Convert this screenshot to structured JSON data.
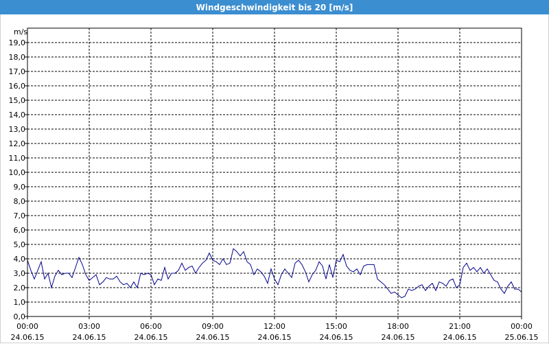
{
  "chart_data": {
    "type": "line",
    "title": "Windgeschwindigkeit bis 20 [m/s]",
    "y_label": "m/s",
    "grid": true,
    "xlim": [
      0,
      1440
    ],
    "ylim": [
      0,
      20
    ],
    "xticks": [
      {
        "value": 0,
        "label": "00:00",
        "sublabel": "24.06.15"
      },
      {
        "value": 180,
        "label": "03:00",
        "sublabel": "24.06.15"
      },
      {
        "value": 360,
        "label": "06:00",
        "sublabel": "24.06.15"
      },
      {
        "value": 540,
        "label": "09:00",
        "sublabel": "24.06.15"
      },
      {
        "value": 720,
        "label": "12:00",
        "sublabel": "24.06.15"
      },
      {
        "value": 900,
        "label": "15:00",
        "sublabel": "24.06.15"
      },
      {
        "value": 1080,
        "label": "18:00",
        "sublabel": "24.06.15"
      },
      {
        "value": 1260,
        "label": "21:00",
        "sublabel": "24.06.15"
      },
      {
        "value": 1440,
        "label": "00:00",
        "sublabel": "25.06.15"
      }
    ],
    "yticks": [
      {
        "value": 0,
        "label": "0,0"
      },
      {
        "value": 1,
        "label": "1,0"
      },
      {
        "value": 2,
        "label": "2,0"
      },
      {
        "value": 3,
        "label": "3,0"
      },
      {
        "value": 4,
        "label": "4,0"
      },
      {
        "value": 5,
        "label": "5,0"
      },
      {
        "value": 6,
        "label": "6,0"
      },
      {
        "value": 7,
        "label": "7,0"
      },
      {
        "value": 8,
        "label": "8,0"
      },
      {
        "value": 9,
        "label": "9,0"
      },
      {
        "value": 10,
        "label": "10,0"
      },
      {
        "value": 11,
        "label": "11,0"
      },
      {
        "value": 12,
        "label": "12,0"
      },
      {
        "value": 13,
        "label": "13,0"
      },
      {
        "value": 14,
        "label": "14,0"
      },
      {
        "value": 15,
        "label": "15,0"
      },
      {
        "value": 16,
        "label": "16,0"
      },
      {
        "value": 17,
        "label": "17,0"
      },
      {
        "value": 18,
        "label": "18,0"
      },
      {
        "value": 19,
        "label": "19,0"
      }
    ],
    "x": [
      0,
      10,
      20,
      30,
      40,
      50,
      60,
      70,
      80,
      90,
      100,
      110,
      120,
      130,
      140,
      150,
      160,
      170,
      180,
      190,
      200,
      210,
      220,
      230,
      240,
      250,
      260,
      270,
      280,
      290,
      300,
      310,
      320,
      330,
      340,
      350,
      360,
      370,
      380,
      390,
      400,
      410,
      420,
      430,
      440,
      450,
      460,
      470,
      480,
      490,
      500,
      510,
      520,
      530,
      540,
      550,
      560,
      570,
      580,
      590,
      600,
      610,
      620,
      630,
      640,
      650,
      660,
      670,
      680,
      690,
      700,
      710,
      720,
      730,
      740,
      750,
      760,
      770,
      780,
      790,
      800,
      810,
      820,
      830,
      840,
      850,
      860,
      870,
      880,
      890,
      900,
      910,
      920,
      930,
      940,
      950,
      960,
      970,
      980,
      990,
      1000,
      1010,
      1020,
      1030,
      1040,
      1050,
      1060,
      1070,
      1080,
      1090,
      1100,
      1110,
      1120,
      1130,
      1140,
      1150,
      1160,
      1170,
      1180,
      1190,
      1200,
      1210,
      1220,
      1230,
      1240,
      1250,
      1260,
      1270,
      1280,
      1290,
      1300,
      1310,
      1320,
      1330,
      1340,
      1350,
      1360,
      1370,
      1380,
      1390,
      1400,
      1410,
      1420,
      1430,
      1440
    ],
    "series": [
      {
        "color": "#00008b",
        "values": [
          3.9,
          3.2,
          2.6,
          3.2,
          3.8,
          2.6,
          3.0,
          2.0,
          2.8,
          3.2,
          2.9,
          3.0,
          3.0,
          2.7,
          3.4,
          4.1,
          3.6,
          2.9,
          2.5,
          2.7,
          2.9,
          2.2,
          2.4,
          2.7,
          2.6,
          2.6,
          2.8,
          2.4,
          2.2,
          2.3,
          2.0,
          2.4,
          2.0,
          3.0,
          2.9,
          3.0,
          2.9,
          2.2,
          2.6,
          2.5,
          3.4,
          2.6,
          3.0,
          3.0,
          3.2,
          3.7,
          3.2,
          3.4,
          3.5,
          3.0,
          3.4,
          3.7,
          3.9,
          4.4,
          3.9,
          3.8,
          3.6,
          4.0,
          3.6,
          3.7,
          4.7,
          4.5,
          4.2,
          4.5,
          3.8,
          3.6,
          2.9,
          3.3,
          3.1,
          2.8,
          2.3,
          3.3,
          2.6,
          2.2,
          2.9,
          3.3,
          3.0,
          2.7,
          3.7,
          3.9,
          3.6,
          3.1,
          2.4,
          2.9,
          3.2,
          3.8,
          3.5,
          2.6,
          3.6,
          2.7,
          3.9,
          3.8,
          4.3,
          3.5,
          3.2,
          3.1,
          3.3,
          2.9,
          3.5,
          3.6,
          3.6,
          3.6,
          2.6,
          2.4,
          2.2,
          1.9,
          1.6,
          1.7,
          1.5,
          1.3,
          1.4,
          1.9,
          1.8,
          1.9,
          2.1,
          2.2,
          1.8,
          2.1,
          2.3,
          1.8,
          2.4,
          2.3,
          2.1,
          2.5,
          2.6,
          2.0,
          2.2,
          3.4,
          3.7,
          3.2,
          3.4,
          3.1,
          3.4,
          3.0,
          3.3,
          2.9,
          2.5,
          2.4,
          1.9,
          1.6,
          2.1,
          2.4,
          1.9,
          1.9,
          1.7
        ]
      }
    ]
  }
}
